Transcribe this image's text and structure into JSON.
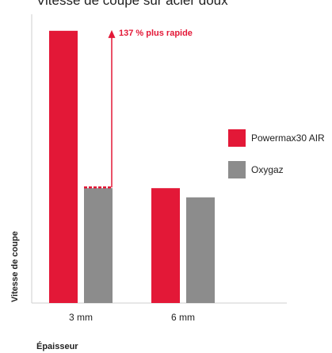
{
  "chart_data": {
    "type": "bar",
    "title": "Vitesse de coupe sur acier doux",
    "xlabel": "Épaisseur",
    "ylabel": "Vitesse de coupe",
    "categories": [
      "3 mm",
      "6 mm"
    ],
    "series": [
      {
        "name": "Powermax30 AIR",
        "values": [
          2.37,
          1.0
        ],
        "color": "#e31837"
      },
      {
        "name": "Oxygaz",
        "values": [
          1.0,
          0.92
        ],
        "color": "#8c8c8c"
      }
    ],
    "ylim": [
      0,
      2.5
    ],
    "grid": false,
    "legend_position": "right",
    "annotation": {
      "text": "137 % plus rapide",
      "color": "#e31837",
      "category_index": 0,
      "from_value": 1.0,
      "to_value": 2.37
    }
  }
}
